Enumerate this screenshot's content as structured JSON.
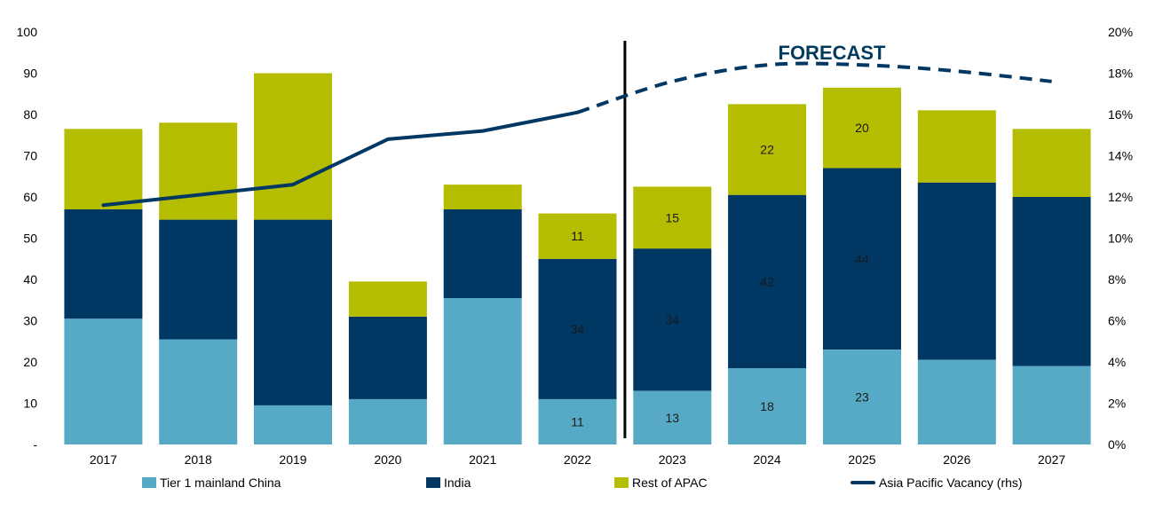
{
  "chart_data": {
    "type": "bar",
    "stacked": true,
    "categories": [
      "2017",
      "2018",
      "2019",
      "2020",
      "2021",
      "2022",
      "2023",
      "2024",
      "2025",
      "2026",
      "2027"
    ],
    "series": [
      {
        "name": "Tier 1 mainland China",
        "color": "#56aac6",
        "values": [
          30.5,
          25.5,
          9.5,
          11,
          35.5,
          11,
          13,
          18.5,
          23,
          20.5,
          19
        ]
      },
      {
        "name": "India",
        "color": "#003763",
        "values": [
          26.5,
          29,
          45,
          20,
          21.5,
          34,
          34.5,
          42,
          44,
          43,
          41
        ]
      },
      {
        "name": "Rest of APAC",
        "color": "#b5bd00",
        "values": [
          19.5,
          23.5,
          35.5,
          8.5,
          6,
          11,
          15,
          22,
          19.5,
          17.5,
          16.5
        ]
      }
    ],
    "data_labels": [
      {
        "category": "2022",
        "series": "Tier 1 mainland China",
        "text": "11"
      },
      {
        "category": "2022",
        "series": "India",
        "text": "34"
      },
      {
        "category": "2022",
        "series": "Rest of APAC",
        "text": "11"
      },
      {
        "category": "2023",
        "series": "Tier 1 mainland China",
        "text": "13"
      },
      {
        "category": "2023",
        "series": "India",
        "text": "34"
      },
      {
        "category": "2023",
        "series": "Rest of APAC",
        "text": "15"
      },
      {
        "category": "2024",
        "series": "Tier 1 mainland China",
        "text": "18"
      },
      {
        "category": "2024",
        "series": "India",
        "text": "42"
      },
      {
        "category": "2024",
        "series": "Rest of APAC",
        "text": "22"
      },
      {
        "category": "2025",
        "series": "Tier 1 mainland China",
        "text": "23"
      },
      {
        "category": "2025",
        "series": "India",
        "text": "44"
      },
      {
        "category": "2025",
        "series": "Rest of APAC",
        "text": "20"
      }
    ],
    "line_series": {
      "name": "Asia Pacific Vacancy (rhs)",
      "color": "#003763",
      "axis": "right",
      "values": [
        11.6,
        12.1,
        12.6,
        14.8,
        15.2,
        16.1,
        17.6,
        18.4,
        18.4,
        18.1,
        17.6
      ],
      "dashed_from_category": "2022"
    },
    "y_left": {
      "range": [
        0,
        100
      ],
      "ticks": [
        "-",
        "10",
        "20",
        "30",
        "40",
        "50",
        "60",
        "70",
        "80",
        "90",
        "100"
      ]
    },
    "y_right": {
      "range": [
        0,
        20
      ],
      "ticks": [
        "0%",
        "2%",
        "4%",
        "6%",
        "8%",
        "10%",
        "12%",
        "14%",
        "16%",
        "18%",
        "20%"
      ]
    },
    "divider_after_category": "2022",
    "annotation": "FORECAST",
    "legend_position": "bottom",
    "grid": false,
    "title": "",
    "xlabel": "",
    "ylabel": ""
  }
}
